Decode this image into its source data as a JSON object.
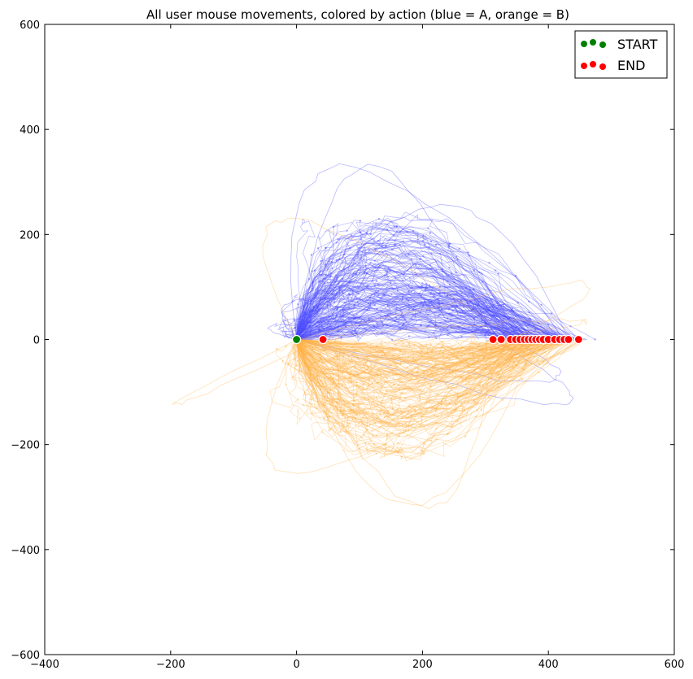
{
  "chart_data": {
    "type": "line",
    "title": "All user mouse movements, colored by action (blue = A, orange = B)",
    "xlabel": "",
    "ylabel": "",
    "xlim": [
      -400,
      600
    ],
    "ylim": [
      -600,
      600
    ],
    "xticks": [
      "−400",
      "−200",
      "0",
      "200",
      "400",
      "600"
    ],
    "xtick_values": [
      -400,
      -200,
      0,
      200,
      400,
      600
    ],
    "yticks": [
      "600",
      "400",
      "200",
      "0",
      "−200",
      "−400",
      "−600"
    ],
    "ytick_values": [
      600,
      400,
      200,
      0,
      -200,
      -400,
      -600
    ],
    "grid": false,
    "legend_position": "top-right",
    "legend": [
      {
        "label": "START",
        "color": "#008000"
      },
      {
        "label": "END",
        "color": "#ff0000"
      }
    ],
    "series": [
      {
        "action": "A",
        "color": "#4a4aff",
        "description_points": [
          {
            "x": -60,
            "y": 505
          },
          {
            "x": 60,
            "y": 505
          },
          {
            "x": 190,
            "y": 395
          },
          {
            "x": -145,
            "y": 45
          },
          {
            "x": -100,
            "y": 125
          },
          {
            "x": 515,
            "y": -190
          },
          {
            "x": 460,
            "y": -120
          }
        ]
      },
      {
        "action": "B",
        "color": "#ffb347",
        "description_points": [
          {
            "x": -315,
            "y": -190
          },
          {
            "x": -155,
            "y": 355
          },
          {
            "x": -155,
            "y": -395
          },
          {
            "x": 135,
            "y": -485
          },
          {
            "x": 200,
            "y": -490
          },
          {
            "x": 555,
            "y": 60
          },
          {
            "x": 545,
            "y": 165
          }
        ]
      }
    ],
    "start_points": [
      {
        "x": 0,
        "y": 0
      }
    ],
    "end_points": [
      {
        "x": 42,
        "y": 0
      },
      {
        "x": 312,
        "y": 0
      },
      {
        "x": 325,
        "y": 0
      },
      {
        "x": 340,
        "y": 0
      },
      {
        "x": 348,
        "y": 0
      },
      {
        "x": 355,
        "y": 0
      },
      {
        "x": 362,
        "y": 0
      },
      {
        "x": 368,
        "y": 0
      },
      {
        "x": 374,
        "y": 0
      },
      {
        "x": 380,
        "y": 0
      },
      {
        "x": 386,
        "y": 0
      },
      {
        "x": 392,
        "y": 0
      },
      {
        "x": 400,
        "y": 0
      },
      {
        "x": 410,
        "y": 0
      },
      {
        "x": 418,
        "y": 0
      },
      {
        "x": 425,
        "y": 0
      },
      {
        "x": 432,
        "y": 0
      },
      {
        "x": 448,
        "y": 0
      }
    ]
  }
}
